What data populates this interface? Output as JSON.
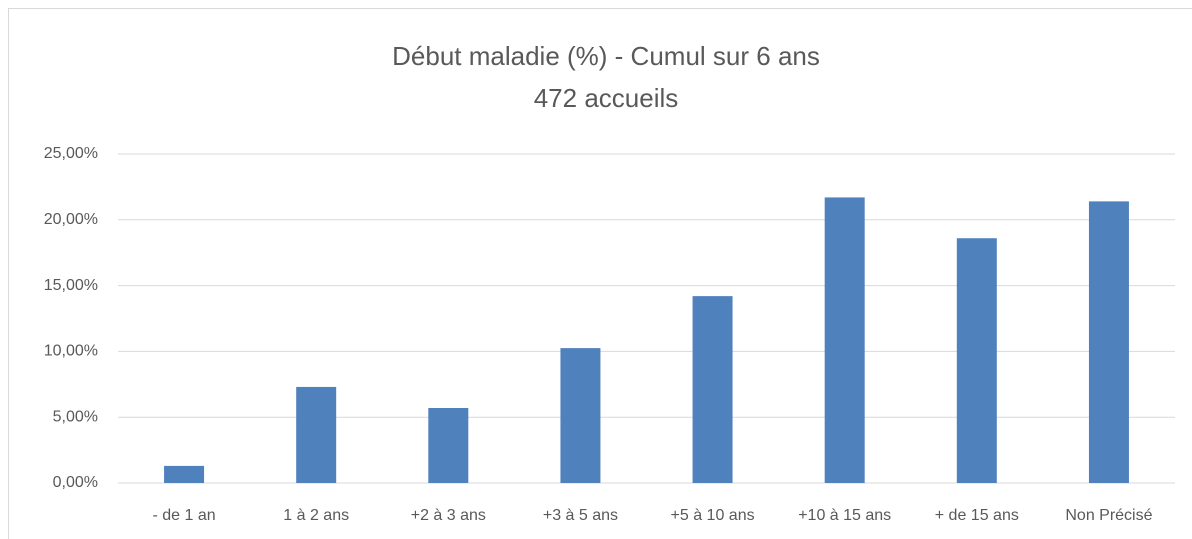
{
  "chart_data": {
    "type": "bar",
    "title": "Début maladie (%) - Cumul sur 6 ans",
    "subtitle": "472 accueils",
    "categories": [
      "- de 1 an",
      "1 à 2 ans",
      "+2 à 3 ans",
      "+3 à 5 ans",
      "+5 à 10 ans",
      "+10 à 15 ans",
      "+ de 15 ans",
      "Non Précisé"
    ],
    "values": [
      1.3,
      7.3,
      5.7,
      10.25,
      14.2,
      21.7,
      18.6,
      21.4
    ],
    "color": "#4f81bd",
    "ylim": [
      0,
      25
    ],
    "yticks": [
      {
        "value": 0,
        "label": "0,00%"
      },
      {
        "value": 5,
        "label": "5,00%"
      },
      {
        "value": 10,
        "label": "10,00%"
      },
      {
        "value": 15,
        "label": "15,00%"
      },
      {
        "value": 20,
        "label": "20,00%"
      },
      {
        "value": 25,
        "label": "25,00%"
      }
    ],
    "grid": true
  }
}
